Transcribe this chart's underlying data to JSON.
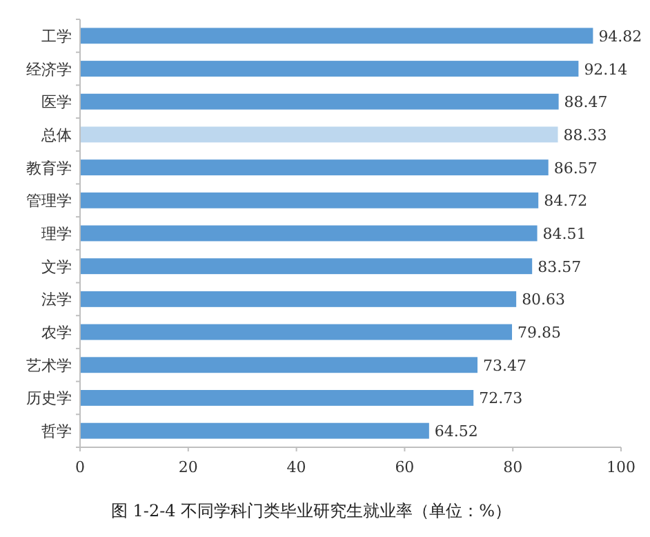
{
  "chart_data": {
    "type": "bar",
    "orientation": "horizontal",
    "title": "图 1-2-4 不同学科门类毕业研究生就业率（单位：%）",
    "categories": [
      "工学",
      "经济学",
      "医学",
      "总体",
      "教育学",
      "管理学",
      "理学",
      "文学",
      "法学",
      "农学",
      "艺术学",
      "历史学",
      "哲学"
    ],
    "values": [
      94.82,
      92.14,
      88.47,
      88.33,
      86.57,
      84.72,
      84.51,
      83.57,
      80.63,
      79.85,
      73.47,
      72.73,
      64.52
    ],
    "colors": [
      "#5b9bd5",
      "#5b9bd5",
      "#5b9bd5",
      "#bdd7ee",
      "#5b9bd5",
      "#5b9bd5",
      "#5b9bd5",
      "#5b9bd5",
      "#5b9bd5",
      "#5b9bd5",
      "#5b9bd5",
      "#5b9bd5",
      "#5b9bd5"
    ],
    "xlim": [
      0,
      100
    ],
    "xticks": [
      0,
      20,
      40,
      60,
      80,
      100
    ],
    "data_labels": true
  }
}
